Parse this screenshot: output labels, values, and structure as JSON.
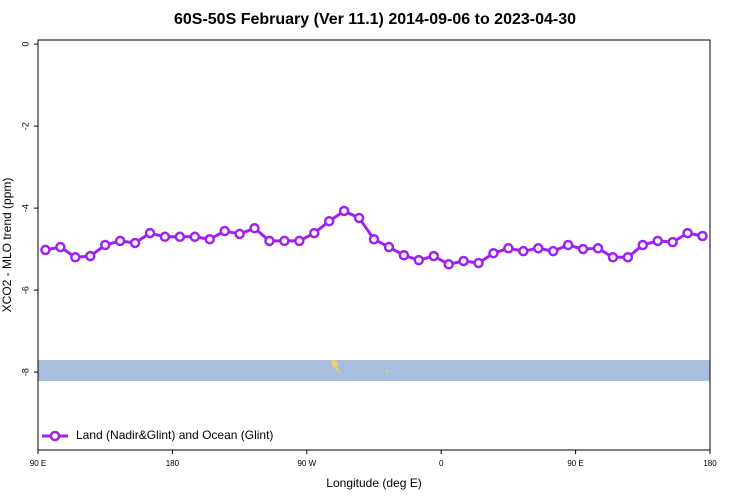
{
  "chart_data": {
    "type": "line",
    "title": "60S-50S February (Ver 11.1)   2014-09-06 to 2023-04-30",
    "xlabel": "Longitude (deg E)",
    "ylabel": "XCO2 - MLO trend (ppm)",
    "x": [
      95,
      105,
      115,
      125,
      135,
      145,
      155,
      165,
      175,
      185,
      195,
      205,
      215,
      225,
      235,
      245,
      255,
      265,
      275,
      285,
      295,
      305,
      315,
      325,
      335,
      345,
      355,
      365,
      375,
      385,
      395,
      405,
      415,
      425,
      435,
      445,
      455,
      465,
      475,
      485,
      495,
      505,
      515,
      525,
      535
    ],
    "series": [
      {
        "name": "Land (Nadir&Glint) and Ocean (Glint)",
        "color": "#a020f0",
        "values": [
          -5.02,
          -4.95,
          -5.2,
          -5.17,
          -4.9,
          -4.8,
          -4.85,
          -4.61,
          -4.7,
          -4.7,
          -4.7,
          -4.76,
          -4.56,
          -4.63,
          -4.49,
          -4.8,
          -4.8,
          -4.8,
          -4.61,
          -4.32,
          -4.07,
          -4.24,
          -4.76,
          -4.95,
          -5.15,
          -5.27,
          -5.17,
          -5.37,
          -5.29,
          -5.34,
          -5.1,
          -4.98,
          -5.05,
          -4.98,
          -5.05,
          -4.9,
          -5.0,
          -4.98,
          -5.2,
          -5.2,
          -4.9,
          -4.8,
          -4.83,
          -4.61,
          -4.68
        ]
      }
    ],
    "xlim": [
      90,
      540
    ],
    "xticks": [
      {
        "value": 90,
        "label": "90 E"
      },
      180,
      {
        "value": 270,
        "label": "90 W"
      },
      {
        "value": 360,
        "label": "0"
      },
      {
        "value": 450,
        "label": "90 E"
      },
      {
        "value": 540,
        "label": "180"
      }
    ],
    "ylim": [
      -9.9,
      0.1
    ],
    "yticks": [
      0,
      -2,
      -4,
      -6,
      -8
    ],
    "legend": "bottomleft"
  }
}
